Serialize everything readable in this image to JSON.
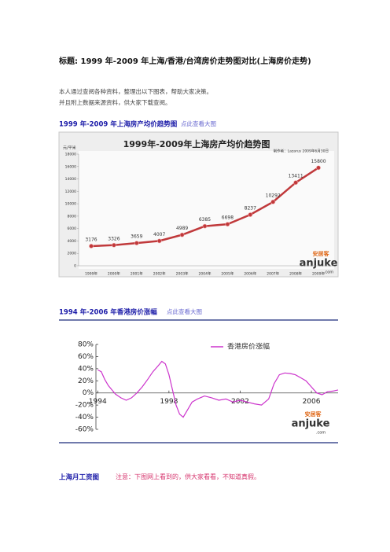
{
  "title": "标题: 1999 年-2009 年上海/香港/台湾房价走势图对比(上海房价走势)",
  "paragraphs": [
    "本人通过查阅各种资料，整理出以下图表，帮助大家决策。",
    "并且附上数据来源资料，供大家下载查阅。"
  ],
  "sections": [
    {
      "heading": "1999 年-2009 年上海房产均价趋势图",
      "link": "点此查看大图"
    },
    {
      "heading": "1994 年-2006 年香港房价涨幅",
      "link": "点此查看大图"
    },
    {
      "heading": "上海月工资图",
      "note": "注意：下图网上看到的，供大家看看，不知道真假。"
    }
  ],
  "logo": {
    "cn": "安居客",
    "en": "anjuke",
    "com": ".com"
  },
  "chart_data": [
    {
      "type": "line",
      "title": "1999年-2009年上海房产均价趋势图",
      "credit": "制作者：Lazarus    2009年6月30日",
      "y_label": "元/平米",
      "categories": [
        "1999年",
        "2000年",
        "2001年",
        "2002年",
        "2003年",
        "2004年",
        "2005年",
        "2006年",
        "2007年",
        "2008年",
        "2009年"
      ],
      "values": [
        3176,
        3326,
        3659,
        4007,
        4989,
        6385,
        6698,
        8237,
        10292,
        13411,
        15800
      ],
      "color": "#c0393b",
      "markers": true,
      "ylim": [
        0,
        18000
      ],
      "yticks": [
        0,
        2000,
        4000,
        6000,
        8000,
        10000,
        12000,
        14000,
        16000,
        18000
      ],
      "grid": false
    },
    {
      "type": "line",
      "legend": "upper right",
      "grid": false,
      "series": [
        {
          "name": "香港房价涨幅",
          "color": "#cc33cc",
          "x": [
            1994.0,
            1994.2,
            1994.4,
            1994.6,
            1994.8,
            1995.0,
            1995.3,
            1995.6,
            1995.9,
            1996.2,
            1996.5,
            1996.8,
            1997.1,
            1997.4,
            1997.6,
            1997.8,
            1998.0,
            1998.2,
            1998.4,
            1998.6,
            1998.8,
            1999.0,
            1999.3,
            1999.6,
            2000.0,
            2000.4,
            2000.8,
            2001.2,
            2001.6,
            2002.0,
            2002.4,
            2002.8,
            2003.2,
            2003.6,
            2003.9,
            2004.2,
            2004.5,
            2004.8,
            2005.1,
            2005.4,
            2005.7,
            2006.0,
            2006.3,
            2006.6,
            2006.9,
            2007.2,
            2007.5
          ],
          "values": [
            38,
            35,
            22,
            12,
            5,
            -2,
            -8,
            -12,
            -8,
            0,
            10,
            22,
            35,
            45,
            52,
            48,
            30,
            5,
            -20,
            -35,
            -40,
            -30,
            -15,
            -10,
            -5,
            -8,
            -12,
            -10,
            -15,
            -12,
            -15,
            -18,
            -20,
            -10,
            15,
            30,
            33,
            32,
            30,
            25,
            20,
            10,
            0,
            -3,
            2,
            3,
            5
          ]
        }
      ],
      "xlim": [
        1993.9,
        2007.5
      ],
      "xticks": [
        1994,
        1998,
        2002,
        2006
      ],
      "ylim": [
        -60,
        80
      ],
      "yticks": [
        {
          "value": -60,
          "label": "-60%"
        },
        {
          "value": -40,
          "label": "-40%"
        },
        {
          "value": -20,
          "label": "-20%"
        },
        {
          "value": 0,
          "label": "0%"
        },
        {
          "value": 20,
          "label": "20%"
        },
        {
          "value": 40,
          "label": "40%"
        },
        {
          "value": 60,
          "label": "60%"
        },
        {
          "value": 80,
          "label": "80%"
        }
      ]
    }
  ]
}
